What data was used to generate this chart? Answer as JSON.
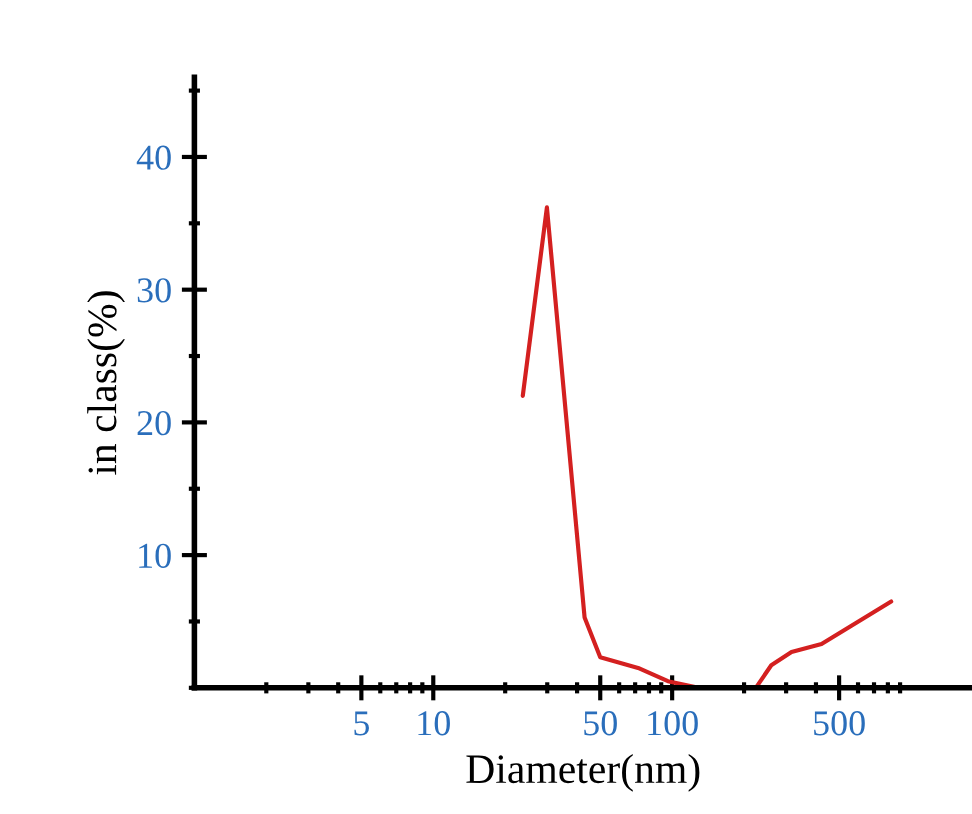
{
  "chart_data": {
    "type": "line",
    "xlabel": "Diameter(nm)",
    "ylabel": "in class(%)",
    "x": [
      23.7,
      29.9,
      43,
      50,
      72,
      96,
      129,
      224,
      260,
      316,
      422,
      826
    ],
    "series": [
      {
        "color": "#d42020",
        "values": [
          22,
          36.2,
          5.3,
          2.3,
          1.5,
          0.5,
          0,
          0,
          1.7,
          2.7,
          3.3,
          6.5
        ]
      }
    ],
    "log": "x",
    "xlim": [
      1,
      1800
    ],
    "xticks": [
      5,
      10,
      50,
      100,
      500
    ],
    "ylim": [
      0,
      46
    ],
    "yticks": [
      10,
      20,
      30,
      40
    ],
    "grid": false,
    "legend": false,
    "marker": "none",
    "line_style": "solid"
  }
}
